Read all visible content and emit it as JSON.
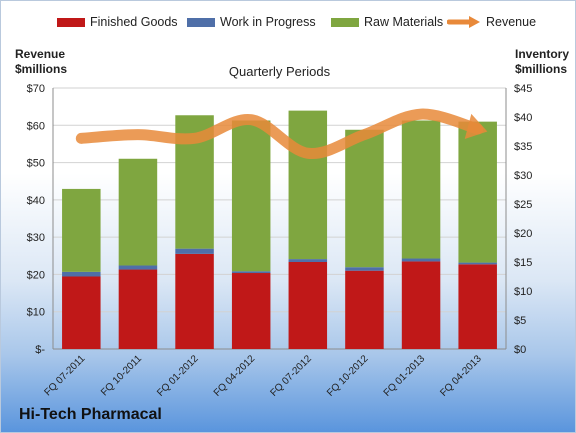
{
  "chart_data": {
    "type": "bar",
    "stacked": true,
    "subtitle": "Quarterly Periods",
    "company": "Hi-Tech Pharmacal",
    "categories": [
      "FQ 07-2011",
      "FQ 10-2011",
      "FQ 01-2012",
      "FQ 04-2012",
      "FQ 07-2012",
      "FQ 10-2012",
      "FQ 01-2013",
      "FQ 04-2013"
    ],
    "series": [
      {
        "name": "Finished Goods",
        "axis": "right",
        "color": "#c01818",
        "values": [
          12.5,
          13.7,
          16.4,
          13.1,
          15.0,
          13.5,
          15.1,
          14.6
        ]
      },
      {
        "name": "Work in Progress",
        "axis": "right",
        "color": "#4f6fa8",
        "values": [
          0.8,
          0.7,
          0.9,
          0.3,
          0.5,
          0.6,
          0.5,
          0.3
        ]
      },
      {
        "name": "Raw Materials",
        "axis": "right",
        "color": "#7fa640",
        "values": [
          14.3,
          18.4,
          23.0,
          26.0,
          25.6,
          23.7,
          23.8,
          24.3
        ]
      },
      {
        "name": "Revenue",
        "axis": "left",
        "type": "line",
        "color": "#e8893a",
        "values": [
          56.5,
          57.5,
          56.5,
          61.5,
          52.5,
          57.5,
          63.0,
          59.0
        ]
      }
    ],
    "left_axis": {
      "title": "Revenue $millions",
      "title_lines": [
        "Revenue",
        "$millions"
      ],
      "min": 0,
      "max": 70,
      "step": 10,
      "ticks": [
        "$-",
        "$10",
        "$20",
        "$30",
        "$40",
        "$50",
        "$60",
        "$70"
      ]
    },
    "right_axis": {
      "title": "Inventory $millions",
      "title_lines": [
        "Inventory",
        "$millions"
      ],
      "min": 0,
      "max": 45,
      "step": 5,
      "ticks": [
        "$0",
        "$5",
        "$10",
        "$15",
        "$20",
        "$25",
        "$30",
        "$35",
        "$40",
        "$45"
      ]
    },
    "grid": true,
    "legend_position": "top"
  }
}
